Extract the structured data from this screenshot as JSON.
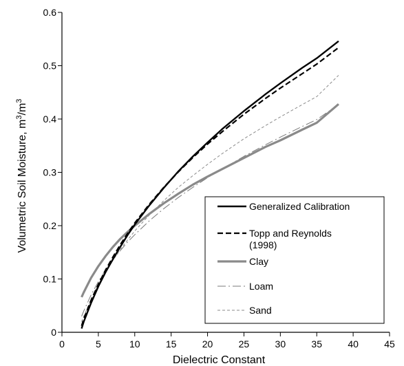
{
  "chart_data": {
    "type": "line",
    "title": "",
    "xlabel": "Dielectric Constant",
    "ylabel_main": "Volumetric Soil Moisture, m",
    "ylabel_sup1": "3",
    "ylabel_mid": "/m",
    "ylabel_sup2": "3",
    "xlim": [
      0,
      45
    ],
    "ylim": [
      0,
      0.6
    ],
    "x_ticks": [
      "0",
      "5",
      "10",
      "15",
      "20",
      "25",
      "30",
      "35",
      "40",
      "45"
    ],
    "y_ticks": [
      "0",
      "0.1",
      "0.2",
      "0.3",
      "0.4",
      "0.5",
      "0.6"
    ],
    "grid": false,
    "legend_position": "bottom-right",
    "series": [
      {
        "name": "Generalized Calibration",
        "style": "solid-thick",
        "color": "#000000",
        "x": [
          2.7,
          3,
          4,
          5,
          6,
          7,
          8,
          9,
          10,
          12,
          14,
          16,
          18,
          20,
          22,
          25,
          28,
          30,
          33,
          35,
          38
        ],
        "y": [
          0.007,
          0.02,
          0.055,
          0.086,
          0.113,
          0.137,
          0.16,
          0.182,
          0.202,
          0.238,
          0.271,
          0.302,
          0.33,
          0.356,
          0.381,
          0.415,
          0.447,
          0.467,
          0.496,
          0.514,
          0.546
        ]
      },
      {
        "name": "Topp and Reynolds (1998)",
        "name_line1": "Topp and Reynolds",
        "name_line2": "(1998)",
        "style": "dashed-thick",
        "color": "#000000",
        "x": [
          2.7,
          3,
          4,
          5,
          6,
          7,
          8,
          9,
          10,
          12,
          14,
          16,
          18,
          20,
          22,
          25,
          28,
          30,
          33,
          35,
          38
        ],
        "y": [
          0.012,
          0.025,
          0.06,
          0.09,
          0.117,
          0.141,
          0.164,
          0.185,
          0.205,
          0.24,
          0.272,
          0.301,
          0.328,
          0.353,
          0.376,
          0.409,
          0.439,
          0.458,
          0.485,
          0.503,
          0.534
        ]
      },
      {
        "name": "Clay",
        "style": "solid-gray-thick",
        "color": "#8a8a8a",
        "x": [
          2.7,
          3,
          4,
          5,
          6,
          7,
          8,
          9,
          10,
          12,
          14,
          16,
          18,
          20,
          22,
          25,
          28,
          30,
          33,
          35,
          38
        ],
        "y": [
          0.066,
          0.075,
          0.102,
          0.124,
          0.143,
          0.16,
          0.175,
          0.188,
          0.2,
          0.222,
          0.242,
          0.26,
          0.277,
          0.292,
          0.306,
          0.327,
          0.348,
          0.36,
          0.38,
          0.393,
          0.428
        ]
      },
      {
        "name": "Loam",
        "style": "dashdot-gray",
        "color": "#7a7a7a",
        "x": [
          2.7,
          3,
          4,
          5,
          6,
          7,
          8,
          9,
          10,
          12,
          14,
          16,
          18,
          20,
          22,
          25,
          28,
          30,
          33,
          35,
          38
        ],
        "y": [
          0.03,
          0.04,
          0.07,
          0.095,
          0.117,
          0.136,
          0.153,
          0.169,
          0.183,
          0.209,
          0.232,
          0.253,
          0.272,
          0.29,
          0.306,
          0.33,
          0.352,
          0.366,
          0.386,
          0.399,
          0.427
        ]
      },
      {
        "name": "Sand",
        "style": "dashed-gray-thin",
        "color": "#8a8a8a",
        "x": [
          2.7,
          3,
          4,
          5,
          6,
          7,
          8,
          9,
          10,
          12,
          14,
          16,
          18,
          20,
          22,
          25,
          28,
          30,
          33,
          35,
          38
        ],
        "y": [
          0.02,
          0.03,
          0.062,
          0.09,
          0.114,
          0.135,
          0.155,
          0.173,
          0.19,
          0.22,
          0.247,
          0.272,
          0.294,
          0.315,
          0.335,
          0.363,
          0.388,
          0.404,
          0.427,
          0.442,
          0.482
        ]
      }
    ]
  }
}
